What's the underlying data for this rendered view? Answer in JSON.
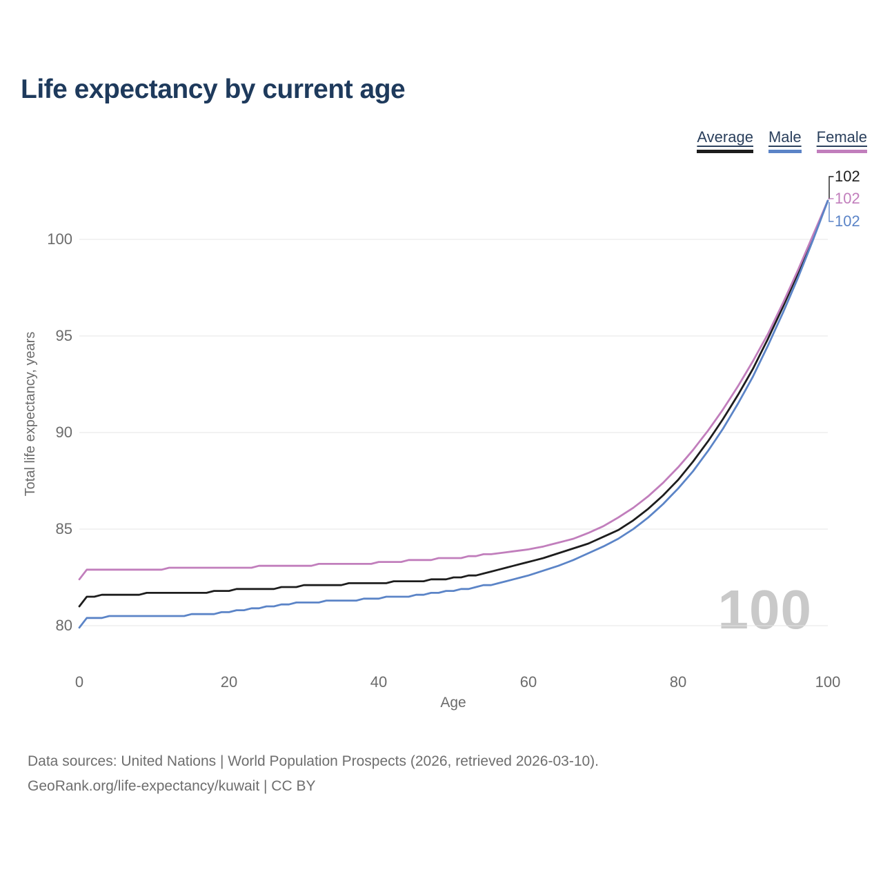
{
  "header": {
    "title": "Life expectancy by current age"
  },
  "colors": {
    "title_text": "#1e3a5c",
    "legend_text": "#2a3f5c",
    "axis_text": "#6b6b6b",
    "gridline": "#e4e4e4",
    "watermark_text": "#c9c9c9",
    "footer_text": "#6e6e6e",
    "average_line": "#1d1d1d",
    "male_line": "#5b84c7",
    "female_line": "#c17ebc"
  },
  "watermark": "100",
  "chart_data": {
    "type": "line",
    "title": "Life expectancy by current age",
    "xlabel": "Age",
    "ylabel": "Total life expectancy, years",
    "x_ticks": [
      0,
      20,
      40,
      60,
      80,
      100
    ],
    "y_ticks": [
      80,
      85,
      90,
      95,
      100
    ],
    "xlim": [
      0,
      100
    ],
    "ylim": [
      80,
      102
    ],
    "grid": "horizontal",
    "legend_position": "top-right",
    "series": [
      {
        "name": "Average",
        "color": "#1d1d1d",
        "end_label": "102",
        "points": [
          [
            0,
            81.0
          ],
          [
            1,
            81.5
          ],
          [
            3,
            81.55
          ],
          [
            6,
            81.6
          ],
          [
            9,
            81.65
          ],
          [
            12,
            81.65
          ],
          [
            15,
            81.7
          ],
          [
            18,
            81.75
          ],
          [
            21,
            81.85
          ],
          [
            24,
            81.9
          ],
          [
            27,
            81.95
          ],
          [
            30,
            82.05
          ],
          [
            33,
            82.1
          ],
          [
            36,
            82.15
          ],
          [
            39,
            82.2
          ],
          [
            42,
            82.25
          ],
          [
            45,
            82.3
          ],
          [
            48,
            82.4
          ],
          [
            51,
            82.5
          ],
          [
            54,
            82.7
          ],
          [
            57,
            83.0
          ],
          [
            60,
            83.3
          ],
          [
            62,
            83.5
          ],
          [
            64,
            83.75
          ],
          [
            66,
            84.0
          ],
          [
            68,
            84.25
          ],
          [
            70,
            84.6
          ],
          [
            72,
            84.95
          ],
          [
            74,
            85.45
          ],
          [
            76,
            86.05
          ],
          [
            78,
            86.75
          ],
          [
            80,
            87.55
          ],
          [
            82,
            88.5
          ],
          [
            84,
            89.55
          ],
          [
            86,
            90.7
          ],
          [
            88,
            91.95
          ],
          [
            90,
            93.3
          ],
          [
            92,
            94.85
          ],
          [
            94,
            96.5
          ],
          [
            96,
            98.25
          ],
          [
            98,
            100.1
          ],
          [
            100,
            102
          ]
        ]
      },
      {
        "name": "Male",
        "color": "#5b84c7",
        "end_label": "102",
        "points": [
          [
            0,
            79.9
          ],
          [
            1,
            80.4
          ],
          [
            4,
            80.45
          ],
          [
            8,
            80.5
          ],
          [
            12,
            80.5
          ],
          [
            15,
            80.55
          ],
          [
            17,
            80.6
          ],
          [
            19,
            80.65
          ],
          [
            21,
            80.75
          ],
          [
            23,
            80.85
          ],
          [
            25,
            80.95
          ],
          [
            27,
            81.05
          ],
          [
            29,
            81.15
          ],
          [
            31,
            81.2
          ],
          [
            33,
            81.25
          ],
          [
            35,
            81.3
          ],
          [
            38,
            81.35
          ],
          [
            41,
            81.45
          ],
          [
            44,
            81.5
          ],
          [
            46,
            81.6
          ],
          [
            48,
            81.7
          ],
          [
            50,
            81.8
          ],
          [
            52,
            81.9
          ],
          [
            54,
            82.05
          ],
          [
            56,
            82.2
          ],
          [
            58,
            82.4
          ],
          [
            60,
            82.6
          ],
          [
            62,
            82.85
          ],
          [
            64,
            83.1
          ],
          [
            66,
            83.4
          ],
          [
            68,
            83.75
          ],
          [
            70,
            84.1
          ],
          [
            72,
            84.5
          ],
          [
            74,
            85.0
          ],
          [
            76,
            85.6
          ],
          [
            78,
            86.3
          ],
          [
            80,
            87.1
          ],
          [
            82,
            88.0
          ],
          [
            84,
            89.05
          ],
          [
            86,
            90.2
          ],
          [
            88,
            91.5
          ],
          [
            90,
            92.9
          ],
          [
            92,
            94.5
          ],
          [
            94,
            96.2
          ],
          [
            96,
            98.0
          ],
          [
            98,
            99.95
          ],
          [
            100,
            102
          ]
        ]
      },
      {
        "name": "Female",
        "color": "#c17ebc",
        "end_label": "102",
        "points": [
          [
            0,
            82.4
          ],
          [
            1,
            82.85
          ],
          [
            4,
            82.9
          ],
          [
            8,
            82.9
          ],
          [
            12,
            82.95
          ],
          [
            16,
            83.0
          ],
          [
            20,
            83.0
          ],
          [
            24,
            83.05
          ],
          [
            28,
            83.1
          ],
          [
            32,
            83.15
          ],
          [
            36,
            83.2
          ],
          [
            40,
            83.25
          ],
          [
            44,
            83.35
          ],
          [
            48,
            83.45
          ],
          [
            52,
            83.55
          ],
          [
            55,
            83.7
          ],
          [
            58,
            83.85
          ],
          [
            60,
            83.95
          ],
          [
            62,
            84.1
          ],
          [
            64,
            84.3
          ],
          [
            66,
            84.5
          ],
          [
            68,
            84.8
          ],
          [
            70,
            85.15
          ],
          [
            72,
            85.6
          ],
          [
            74,
            86.1
          ],
          [
            76,
            86.7
          ],
          [
            78,
            87.4
          ],
          [
            80,
            88.2
          ],
          [
            82,
            89.1
          ],
          [
            84,
            90.1
          ],
          [
            86,
            91.2
          ],
          [
            88,
            92.4
          ],
          [
            90,
            93.7
          ],
          [
            92,
            95.1
          ],
          [
            94,
            96.7
          ],
          [
            96,
            98.4
          ],
          [
            98,
            100.2
          ],
          [
            100,
            102
          ]
        ]
      }
    ]
  },
  "footer": {
    "line1": "Data sources: United Nations | World Population Prospects (2026, retrieved 2026-03-10).",
    "line2": "GeoRank.org/life-expectancy/kuwait | CC BY"
  }
}
